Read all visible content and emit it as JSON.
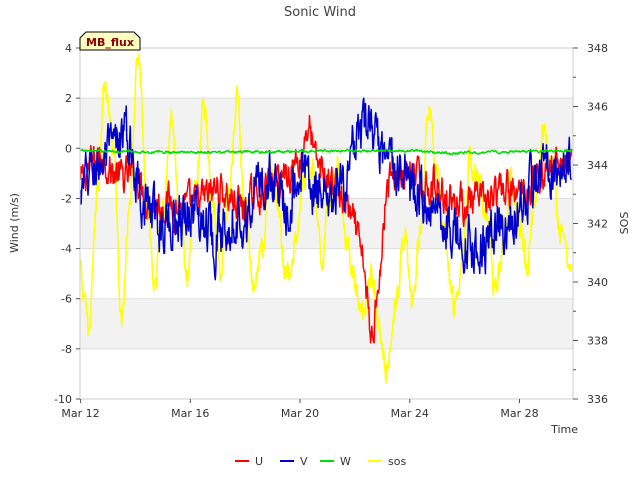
{
  "chart_data": {
    "type": "line",
    "title": "Sonic Wind",
    "badge": "MB_flux",
    "xlabel": "Time",
    "ylabel": "Wind (m/s)",
    "y2label": "SOS",
    "x_start_day": 12,
    "x_end_day": 29.9,
    "xlim_days": [
      11.98,
      29.95
    ],
    "ylim": [
      -10,
      4
    ],
    "y2lim": [
      336,
      348
    ],
    "x_ticks": [
      {
        "label": "Mar 12",
        "day": 12
      },
      {
        "label": "Mar 16",
        "day": 16
      },
      {
        "label": "Mar 20",
        "day": 20
      },
      {
        "label": "Mar 24",
        "day": 24
      },
      {
        "label": "Mar 28",
        "day": 28
      }
    ],
    "y_ticks": [
      -10,
      -8,
      -6,
      -4,
      -2,
      0,
      2,
      4
    ],
    "y2_ticks": [
      336,
      338,
      340,
      342,
      344,
      346,
      348
    ],
    "y2_minor_ticks": [
      337,
      339,
      341,
      343,
      345,
      347
    ],
    "grid": true,
    "band_ranges": [
      [
        -8,
        -6
      ],
      [
        -4,
        -2
      ],
      [
        0,
        2
      ]
    ],
    "legend_position": "bottom-center",
    "series": [
      {
        "name": "U",
        "axis": "left",
        "color": "#ff0000",
        "knots": [
          [
            12.0,
            -1.4
          ],
          [
            12.4,
            -0.6
          ],
          [
            12.8,
            -0.3
          ],
          [
            13.2,
            -1.0
          ],
          [
            13.6,
            -1.2
          ],
          [
            14.0,
            -1.0
          ],
          [
            14.4,
            -2.0
          ],
          [
            14.8,
            -2.3
          ],
          [
            15.2,
            -2.1
          ],
          [
            15.6,
            -2.4
          ],
          [
            16.0,
            -2.3
          ],
          [
            16.5,
            -2.0
          ],
          [
            17.0,
            -1.6
          ],
          [
            17.5,
            -2.0
          ],
          [
            18.0,
            -2.4
          ],
          [
            18.5,
            -1.7
          ],
          [
            19.0,
            -1.4
          ],
          [
            19.5,
            -1.0
          ],
          [
            20.0,
            -0.4
          ],
          [
            20.3,
            0.9
          ],
          [
            20.6,
            -0.6
          ],
          [
            21.0,
            -1.2
          ],
          [
            21.3,
            -1.5
          ],
          [
            21.6,
            -2.2
          ],
          [
            22.0,
            -3.2
          ],
          [
            22.3,
            -4.6
          ],
          [
            22.6,
            -7.6
          ],
          [
            22.9,
            -4.8
          ],
          [
            23.2,
            -1.4
          ],
          [
            23.6,
            -1.0
          ],
          [
            24.0,
            -1.1
          ],
          [
            24.5,
            -1.4
          ],
          [
            25.0,
            -1.5
          ],
          [
            25.5,
            -2.0
          ],
          [
            26.0,
            -2.2
          ],
          [
            26.5,
            -2.2
          ],
          [
            27.0,
            -2.0
          ],
          [
            27.5,
            -1.7
          ],
          [
            28.0,
            -1.9
          ],
          [
            28.4,
            -1.4
          ],
          [
            28.8,
            -1.0
          ],
          [
            29.2,
            -0.8
          ],
          [
            29.6,
            -0.6
          ],
          [
            29.9,
            -0.6
          ]
        ],
        "amp": 0.6
      },
      {
        "name": "V",
        "axis": "left",
        "color": "#0000cc",
        "knots": [
          [
            12.0,
            -2.0
          ],
          [
            12.4,
            -0.9
          ],
          [
            12.8,
            -0.5
          ],
          [
            13.2,
            -0.2
          ],
          [
            13.6,
            0.6
          ],
          [
            14.0,
            -0.8
          ],
          [
            14.4,
            -2.2
          ],
          [
            14.8,
            -3.0
          ],
          [
            15.2,
            -3.0
          ],
          [
            15.6,
            -2.7
          ],
          [
            16.0,
            -2.4
          ],
          [
            16.5,
            -2.8
          ],
          [
            17.0,
            -3.6
          ],
          [
            17.5,
            -2.6
          ],
          [
            18.0,
            -2.8
          ],
          [
            18.5,
            -1.4
          ],
          [
            19.0,
            -1.2
          ],
          [
            19.5,
            -2.2
          ],
          [
            20.0,
            -0.8
          ],
          [
            20.5,
            -1.6
          ],
          [
            21.0,
            -2.6
          ],
          [
            21.5,
            -1.6
          ],
          [
            22.0,
            -0.2
          ],
          [
            22.5,
            1.1
          ],
          [
            23.0,
            -0.6
          ],
          [
            23.5,
            -0.8
          ],
          [
            24.0,
            -1.4
          ],
          [
            24.5,
            -2.0
          ],
          [
            25.0,
            -2.4
          ],
          [
            25.5,
            -3.2
          ],
          [
            26.0,
            -3.7
          ],
          [
            26.5,
            -4.0
          ],
          [
            27.0,
            -3.5
          ],
          [
            27.5,
            -3.0
          ],
          [
            28.0,
            -2.8
          ],
          [
            28.5,
            -1.4
          ],
          [
            29.0,
            -0.6
          ],
          [
            29.5,
            -0.5
          ],
          [
            29.9,
            -0.7
          ]
        ],
        "amp": 0.9
      },
      {
        "name": "W",
        "axis": "left",
        "color": "#00dd00",
        "knots": [
          [
            12.0,
            -0.1
          ],
          [
            15.0,
            -0.15
          ],
          [
            18.0,
            -0.15
          ],
          [
            21.0,
            -0.1
          ],
          [
            24.0,
            -0.1
          ],
          [
            25.5,
            -0.2
          ],
          [
            27.0,
            -0.15
          ],
          [
            29.9,
            -0.1
          ]
        ],
        "amp": 0.04
      },
      {
        "name": "sos",
        "axis": "right",
        "color": "#ffff00",
        "knots": [
          [
            12.0,
            340.3
          ],
          [
            12.3,
            338.3
          ],
          [
            12.6,
            343.0
          ],
          [
            12.9,
            346.6
          ],
          [
            13.2,
            344.5
          ],
          [
            13.5,
            339.0
          ],
          [
            13.8,
            343.0
          ],
          [
            14.1,
            347.8
          ],
          [
            14.4,
            343.0
          ],
          [
            14.7,
            339.8
          ],
          [
            15.0,
            342.5
          ],
          [
            15.3,
            345.6
          ],
          [
            15.6,
            342.5
          ],
          [
            15.9,
            340.2
          ],
          [
            16.2,
            343.5
          ],
          [
            16.5,
            346.3
          ],
          [
            16.8,
            343.0
          ],
          [
            17.1,
            340.3
          ],
          [
            17.4,
            343.0
          ],
          [
            17.7,
            346.2
          ],
          [
            18.0,
            342.5
          ],
          [
            18.3,
            339.6
          ],
          [
            18.6,
            340.8
          ],
          [
            18.9,
            343.8
          ],
          [
            19.2,
            342.5
          ],
          [
            19.5,
            340.0
          ],
          [
            19.8,
            341.2
          ],
          [
            20.1,
            343.8
          ],
          [
            20.4,
            344.0
          ],
          [
            20.8,
            341.0
          ],
          [
            21.1,
            343.0
          ],
          [
            21.4,
            344.0
          ],
          [
            21.7,
            341.5
          ],
          [
            22.0,
            340.0
          ],
          [
            22.3,
            339.0
          ],
          [
            22.6,
            340.5
          ],
          [
            22.9,
            338.5
          ],
          [
            23.2,
            337.0
          ],
          [
            23.5,
            339.5
          ],
          [
            23.8,
            341.5
          ],
          [
            24.1,
            339.5
          ],
          [
            24.4,
            342.0
          ],
          [
            24.7,
            346.0
          ],
          [
            25.0,
            343.5
          ],
          [
            25.3,
            341.5
          ],
          [
            25.6,
            339.0
          ],
          [
            25.9,
            340.5
          ],
          [
            26.2,
            344.0
          ],
          [
            26.5,
            343.5
          ],
          [
            26.8,
            342.0
          ],
          [
            27.1,
            339.5
          ],
          [
            27.4,
            341.0
          ],
          [
            27.7,
            343.5
          ],
          [
            28.0,
            342.0
          ],
          [
            28.3,
            340.5
          ],
          [
            28.6,
            343.0
          ],
          [
            28.9,
            345.0
          ],
          [
            29.2,
            344.0
          ],
          [
            29.5,
            341.5
          ],
          [
            29.8,
            341.0
          ],
          [
            29.9,
            340.5
          ]
        ],
        "amp": 0.45
      }
    ]
  }
}
